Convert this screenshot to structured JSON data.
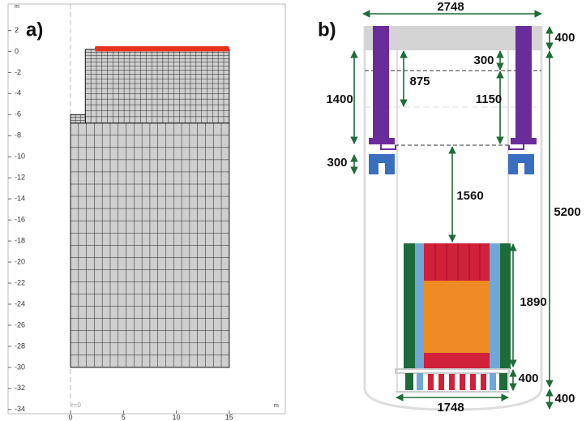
{
  "panel_a": {
    "label": "a)",
    "unit_top": "m",
    "unit_right": "m",
    "origin_note": "r=0",
    "xlim": [
      -5.9,
      20.3
    ],
    "ylim": [
      -34.4,
      4.5
    ],
    "xticks": [
      0,
      5,
      10,
      15
    ],
    "yticks": [
      2,
      0,
      -2,
      -4,
      -6,
      -8,
      -10,
      -12,
      -14,
      -16,
      -18,
      -20,
      -22,
      -24,
      -26,
      -28,
      -30,
      -32,
      -34
    ]
  },
  "panel_b": {
    "label": "b)",
    "dimensions": [
      2748,
      400,
      300,
      875,
      1400,
      1150,
      300,
      1560,
      5200,
      1890,
      400,
      1748,
      400
    ]
  }
}
